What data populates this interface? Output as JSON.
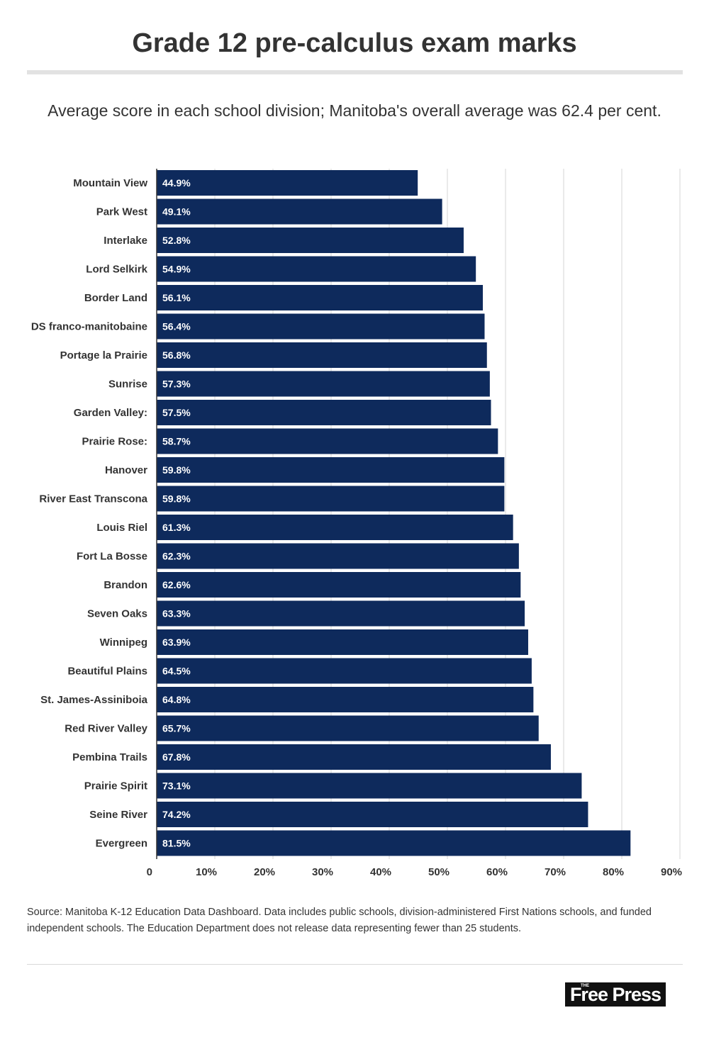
{
  "title": "Grade 12 pre-calculus exam marks",
  "subtitle": "Average score in each school division; Manitoba's overall average was 62.4 per cent.",
  "source": " Source: Manitoba K-12 Education Data Dashboard. Data includes public schools, division-administered First Nations schools, and funded independent schools. The Education Department does not release data representing fewer than 25 students.",
  "logo": {
    "small": "THE",
    "text": "Free Press"
  },
  "colors": {
    "bar": "#0e2a5c",
    "grid": "#d6d6d6",
    "axis": "#333333",
    "text": "#333333"
  },
  "chart_data": {
    "type": "bar",
    "orientation": "horizontal",
    "title": "Grade 12 pre-calculus exam marks",
    "xlabel": "",
    "ylabel": "",
    "xlim": [
      0,
      90
    ],
    "grid": true,
    "categories": [
      "Mountain View",
      "Park West",
      "Interlake",
      "Lord Selkirk",
      "Border Land",
      "DS franco-manitobaine",
      "Portage la Prairie",
      "Sunrise",
      "Garden Valley:",
      "Prairie Rose:",
      "Hanover",
      "River East Transcona",
      "Louis Riel",
      "Fort La Bosse",
      "Brandon",
      "Seven Oaks",
      "Winnipeg",
      "Beautiful Plains",
      "St. James-Assiniboia",
      "Red River Valley",
      "Pembina Trails",
      "Prairie Spirit",
      "Seine River",
      "Evergreen"
    ],
    "values": [
      44.9,
      49.1,
      52.8,
      54.9,
      56.1,
      56.4,
      56.8,
      57.3,
      57.5,
      58.7,
      59.8,
      59.8,
      61.3,
      62.3,
      62.6,
      63.3,
      63.9,
      64.5,
      64.8,
      65.7,
      67.8,
      73.1,
      74.2,
      81.5
    ],
    "value_labels": [
      "44.9%",
      "49.1%",
      "52.8%",
      "54.9%",
      "56.1%",
      "56.4%",
      "56.8%",
      "57.3%",
      "57.5%",
      "58.7%",
      "59.8%",
      "59.8%",
      "61.3%",
      "62.3%",
      "62.6%",
      "63.3%",
      "63.9%",
      "64.5%",
      "64.8%",
      "65.7%",
      "67.8%",
      "73.1%",
      "74.2%",
      "81.5%"
    ],
    "ticks": [
      0,
      10,
      20,
      30,
      40,
      50,
      60,
      70,
      80,
      90
    ],
    "tick_labels": [
      "0",
      "10%",
      "20%",
      "30%",
      "40%",
      "50%",
      "60%",
      "70%",
      "80%",
      "90%"
    ]
  }
}
